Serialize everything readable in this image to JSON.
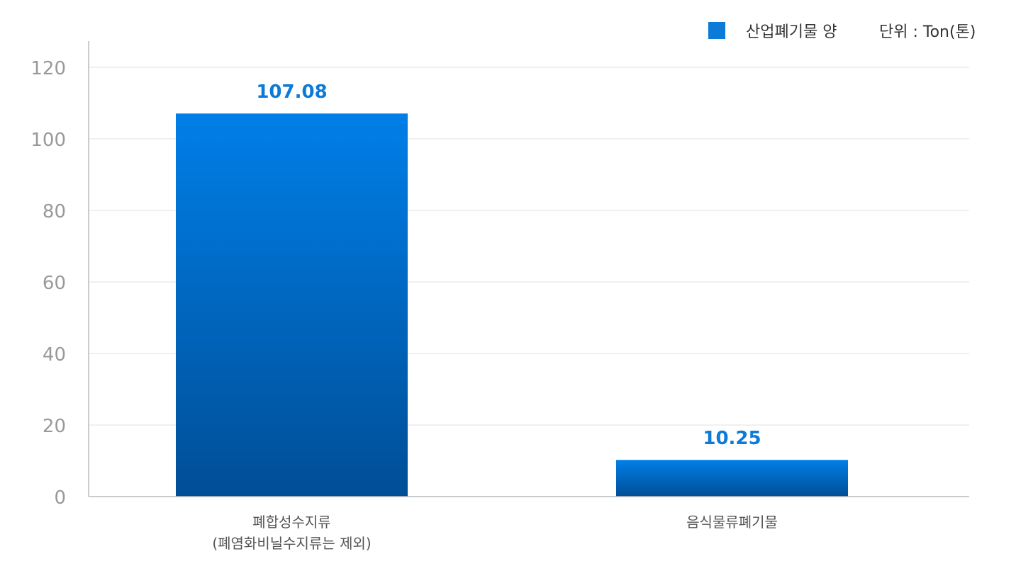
{
  "chart_data": {
    "type": "bar",
    "categories": [
      [
        "폐합성수지류",
        "(폐염화비닐수지류는 제외)"
      ],
      [
        "음식물류폐기물"
      ]
    ],
    "series": [
      {
        "name": "산업폐기물 양",
        "values": [
          107.08,
          10.25
        ],
        "data_labels": [
          "107.08",
          "10.25"
        ]
      }
    ],
    "unit_label": "단위 : Ton(톤)",
    "ylim": [
      0,
      120
    ],
    "yticks": [
      0,
      20,
      40,
      60,
      80,
      100,
      120
    ],
    "grid": true,
    "legend_position": "top-right",
    "colors": {
      "bar_top": "#007fe8",
      "bar_bottom": "#004e96",
      "label": "#0b7ad8",
      "legend": "#0b7ad8"
    }
  }
}
